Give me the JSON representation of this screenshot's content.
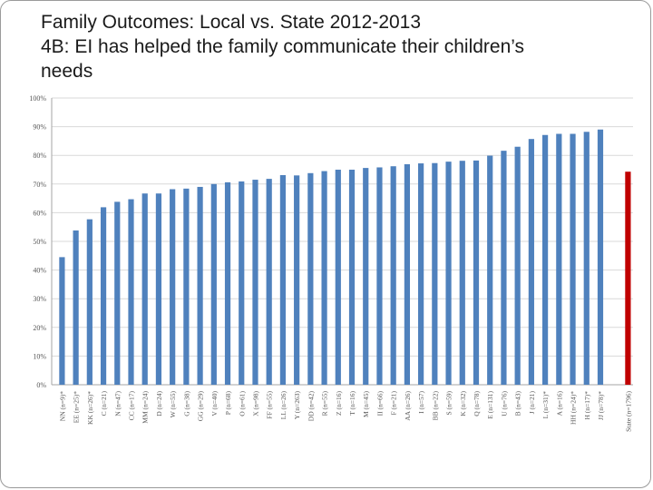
{
  "slide": {
    "title_lines": [
      "Family Outcomes: Local vs. State 2012-2013",
      "4B: EI has helped the family communicate their children’s",
      "needs"
    ]
  },
  "chart_data": {
    "type": "bar",
    "title": "Family Outcomes: Local vs. State 2012-2013 — 4B: EI has helped the family communicate their children’s needs",
    "xlabel": "",
    "ylabel": "",
    "ylim": [
      0,
      100
    ],
    "y_ticks": [
      0,
      10,
      20,
      30,
      40,
      50,
      60,
      70,
      80,
      90,
      100
    ],
    "y_tick_labels": [
      "0%",
      "10%",
      "20%",
      "30%",
      "40%",
      "50%",
      "60%",
      "70%",
      "80%",
      "90%",
      "100%"
    ],
    "grid": true,
    "colors": {
      "local": "#4F81BD",
      "state": "#C00000",
      "grid": "#d9d9d9",
      "axis": "#a6a6a6",
      "tick_text": "#555555"
    },
    "categories": [
      "NN (n=9)*",
      "EE (n=25)*",
      "KK (n=26)*",
      "C (n=21)",
      "N (n=47)",
      "CC (n=17)",
      "MM (n=24)",
      "D (n=24)",
      "W (n=55)",
      "G (n=38)",
      "GG (n=29)",
      "V (n=40)",
      "P (n=68)",
      "O (n=61)",
      "X (n=98)",
      "FF (n=55)",
      "LL (n=26)",
      "Y (n=263)",
      "DD (n=42)",
      "R (n=55)",
      "Z (n=16)",
      "T (n=16)",
      "M (n=45)",
      "II (n=66)",
      "F (n=21)",
      "AA (n=26)",
      "I (n=57)",
      "BB (n=22)",
      "S (n=59)",
      "K (n=32)",
      "Q (n=78)",
      "E (n=131)",
      "U (n=76)",
      "B (n=43)",
      "J (n=21)",
      "L (n=31)*",
      "A (n=16)",
      "HH (n=24)*",
      "H (n=17)*",
      "JJ (n=78)*",
      "State (n=1796)"
    ],
    "values": [
      44.5,
      53.8,
      57.7,
      61.9,
      63.8,
      64.7,
      66.7,
      66.7,
      68.2,
      68.4,
      69.0,
      70.0,
      70.6,
      70.9,
      71.5,
      71.8,
      73.1,
      73.0,
      73.8,
      74.5,
      75.0,
      75.0,
      75.6,
      75.8,
      76.2,
      76.9,
      77.2,
      77.3,
      77.8,
      78.1,
      78.2,
      79.9,
      81.6,
      83.0,
      85.7,
      87.1,
      87.5,
      87.5,
      88.2,
      89.0,
      74.3
    ],
    "highlight_index": 40,
    "gap_before_index": 40
  }
}
